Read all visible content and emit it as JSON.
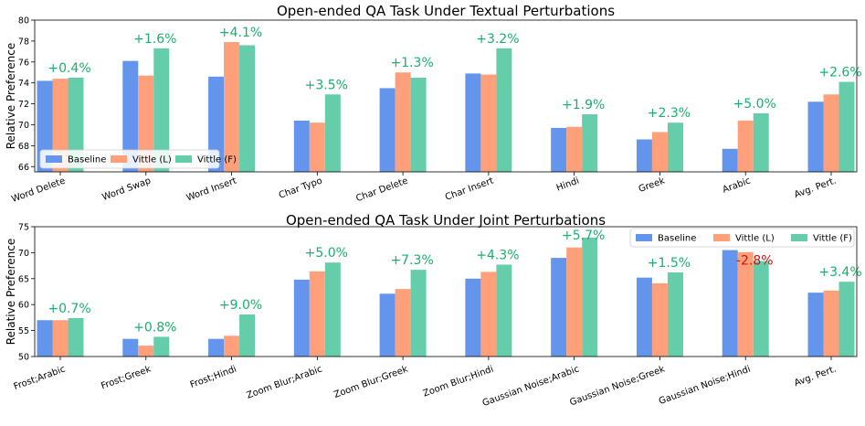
{
  "chart_data": [
    {
      "type": "bar",
      "title": "Open-ended QA Task Under Textual Perturbations",
      "xlabel": "",
      "ylabel": "Relative Preference",
      "ylim": [
        65.5,
        80
      ],
      "yticks": [
        66,
        68,
        70,
        72,
        74,
        76,
        78,
        80
      ],
      "legend_position": "lower-left",
      "grid": false,
      "categories": [
        "Word Delete",
        "Word Swap",
        "Word Insert",
        "Char Typo",
        "Char Delete",
        "Char Insert",
        "Hindi",
        "Greek",
        "Arabic",
        "Avg. Pert."
      ],
      "series": [
        {
          "name": "Baseline",
          "color": "#6495ED",
          "values": [
            74.2,
            76.1,
            74.6,
            70.4,
            73.5,
            74.9,
            69.7,
            68.6,
            67.7,
            72.2
          ]
        },
        {
          "name": "Vittle (L)",
          "color": "#FFA07A",
          "values": [
            74.4,
            74.7,
            77.9,
            70.2,
            75.0,
            74.8,
            69.8,
            69.3,
            70.4,
            72.9
          ]
        },
        {
          "name": "Vittle (F)",
          "color": "#66CDAA",
          "values": [
            74.5,
            77.3,
            77.6,
            72.9,
            74.5,
            77.3,
            71.0,
            70.2,
            71.1,
            74.1
          ]
        }
      ],
      "annotations": [
        "+0.4%",
        "+1.6%",
        "+4.1%",
        "+3.5%",
        "+1.3%",
        "+3.2%",
        "+1.9%",
        "+2.3%",
        "+5.0%",
        "+2.6%"
      ],
      "annotation_colors": [
        "#1aaf6c",
        "#1aaf6c",
        "#1aaf6c",
        "#1aaf6c",
        "#1aaf6c",
        "#1aaf6c",
        "#1aaf6c",
        "#1aaf6c",
        "#1aaf6c",
        "#1aaf6c"
      ]
    },
    {
      "type": "bar",
      "title": "Open-ended QA Task Under Joint Perturbations",
      "xlabel": "",
      "ylabel": "Relative Preference",
      "ylim": [
        50,
        75
      ],
      "yticks": [
        50,
        55,
        60,
        65,
        70,
        75
      ],
      "legend_position": "top-right",
      "grid": false,
      "categories": [
        "Frost;Arabic",
        "Frost;Greek",
        "Frost;Hindi",
        "Zoom Blur;Arabic",
        "Zoom Blur;Greek",
        "Zoom Blur;Hindi",
        "Gaussian Noise;Arabic",
        "Gaussian Noise;Greek",
        "Gaussian Noise;Hindi",
        "Avg. Pert."
      ],
      "series": [
        {
          "name": "Baseline",
          "color": "#6495ED",
          "values": [
            57.0,
            53.4,
            53.4,
            64.8,
            62.1,
            65.0,
            69.0,
            65.2,
            70.5,
            62.3
          ]
        },
        {
          "name": "Vittle (L)",
          "color": "#FFA07A",
          "values": [
            57.0,
            52.1,
            54.0,
            66.4,
            63.0,
            66.3,
            71.0,
            64.1,
            70.1,
            62.7
          ]
        },
        {
          "name": "Vittle (F)",
          "color": "#66CDAA",
          "values": [
            57.4,
            53.8,
            58.1,
            68.1,
            66.7,
            67.7,
            72.9,
            66.2,
            68.4,
            64.4
          ]
        }
      ],
      "annotations": [
        "+0.7%",
        "+0.8%",
        "+9.0%",
        "+5.0%",
        "+7.3%",
        "+4.3%",
        "+5.7%",
        "+1.5%",
        "-2.8%",
        "+3.4%"
      ],
      "annotation_colors": [
        "#1aaf6c",
        "#1aaf6c",
        "#1aaf6c",
        "#1aaf6c",
        "#1aaf6c",
        "#1aaf6c",
        "#1aaf6c",
        "#1aaf6c",
        "#cc1111",
        "#1aaf6c"
      ]
    }
  ]
}
